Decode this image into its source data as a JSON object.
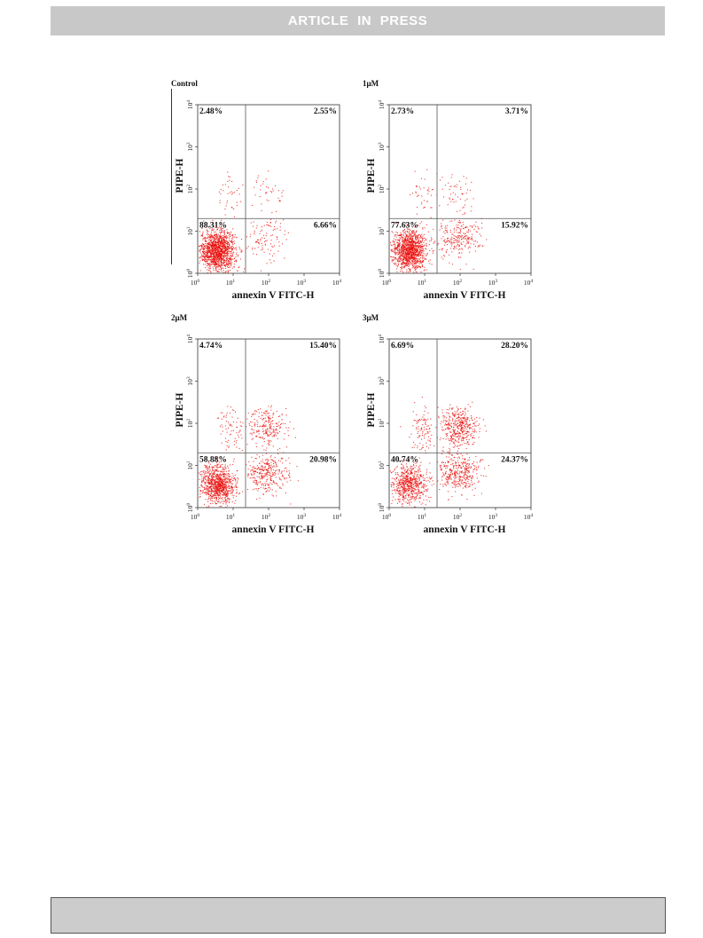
{
  "header": {
    "banner_text": "ARTICLE IN PRESS"
  },
  "figure": {
    "panels": [
      {
        "title": "Control",
        "q_ul": "2.48%",
        "q_ur": "2.55%",
        "q_ll": "88.31%",
        "q_lr": "6.66%"
      },
      {
        "title": "1μM",
        "q_ul": "2.73%",
        "q_ur": "3.71%",
        "q_ll": "77.63%",
        "q_lr": "15.92%"
      },
      {
        "title": "2μM",
        "q_ul": "4.74%",
        "q_ur": "15.40%",
        "q_ll": "58.88%",
        "q_lr": "20.98%"
      },
      {
        "title": "3μM",
        "q_ul": "6.69%",
        "q_ur": "28.20%",
        "q_ll": "40.74%",
        "q_lr": "24.37%"
      }
    ],
    "x_label": "annexin V FITC-H",
    "y_label": "PIPE-H",
    "tick_base": "10",
    "tick_exponents": [
      "0",
      "1",
      "2",
      "3",
      "4"
    ],
    "dot_color": "#e8100c"
  },
  "chart_data": [
    {
      "type": "scatter",
      "title": "Control",
      "xlabel": "annexin V FITC-H",
      "ylabel": "PIPE-H",
      "x_scale": "log",
      "y_scale": "log",
      "xlim": [
        1,
        10000
      ],
      "ylim": [
        1,
        10000
      ],
      "quadrant_percent": {
        "upper_left": 2.48,
        "upper_right": 2.55,
        "lower_left": 88.31,
        "lower_right": 6.66
      }
    },
    {
      "type": "scatter",
      "title": "1μM",
      "xlabel": "annexin V FITC-H",
      "ylabel": "PIPE-H",
      "x_scale": "log",
      "y_scale": "log",
      "xlim": [
        1,
        10000
      ],
      "ylim": [
        1,
        10000
      ],
      "quadrant_percent": {
        "upper_left": 2.73,
        "upper_right": 3.71,
        "lower_left": 77.63,
        "lower_right": 15.92
      }
    },
    {
      "type": "scatter",
      "title": "2μM",
      "xlabel": "annexin V FITC-H",
      "ylabel": "PIPE-H",
      "x_scale": "log",
      "y_scale": "log",
      "xlim": [
        1,
        10000
      ],
      "ylim": [
        1,
        10000
      ],
      "quadrant_percent": {
        "upper_left": 4.74,
        "upper_right": 15.4,
        "lower_left": 58.88,
        "lower_right": 20.98
      }
    },
    {
      "type": "scatter",
      "title": "3μM",
      "xlabel": "annexin V FITC-H",
      "ylabel": "PIPE-H",
      "x_scale": "log",
      "y_scale": "log",
      "xlim": [
        1,
        10000
      ],
      "ylim": [
        1,
        10000
      ],
      "quadrant_percent": {
        "upper_left": 6.69,
        "upper_right": 28.2,
        "lower_left": 40.74,
        "lower_right": 24.37
      }
    }
  ]
}
